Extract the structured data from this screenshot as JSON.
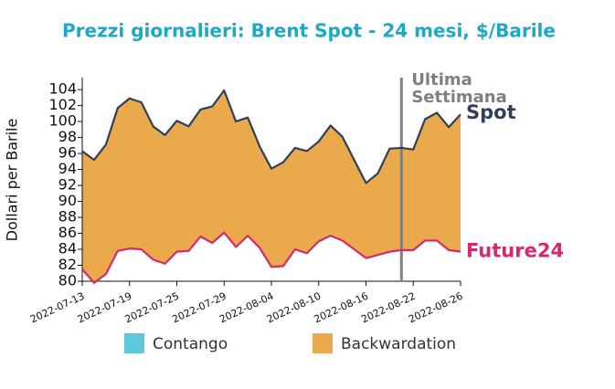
{
  "chart_data": {
    "type": "line",
    "title": "Prezzi giornalieri: Brent Spot - 24 mesi, $/Barile",
    "y_label": "Dollari per Barile",
    "x": [
      "2022-07-13",
      "2022-07-14",
      "2022-07-15",
      "2022-07-18",
      "2022-07-19",
      "2022-07-20",
      "2022-07-21",
      "2022-07-22",
      "2022-07-25",
      "2022-07-26",
      "2022-07-27",
      "2022-07-28",
      "2022-07-29",
      "2022-08-01",
      "2022-08-02",
      "2022-08-03",
      "2022-08-04",
      "2022-08-05",
      "2022-08-08",
      "2022-08-09",
      "2022-08-10",
      "2022-08-11",
      "2022-08-12",
      "2022-08-15",
      "2022-08-16",
      "2022-08-17",
      "2022-08-18",
      "2022-08-19",
      "2022-08-22",
      "2022-08-23",
      "2022-08-24",
      "2022-08-25",
      "2022-08-26"
    ],
    "series": [
      {
        "name": "Spot",
        "color": "#2e3f5c",
        "values": [
          96.3,
          95.2,
          97.1,
          101.7,
          102.9,
          102.4,
          99.4,
          98.3,
          100.1,
          99.4,
          101.5,
          101.9,
          103.9,
          100.0,
          100.5,
          96.9,
          94.1,
          94.9,
          96.7,
          96.3,
          97.5,
          99.5,
          98.1,
          95.2,
          92.3,
          93.5,
          96.6,
          96.7,
          96.5,
          100.3,
          101.1,
          99.3,
          100.9
        ]
      },
      {
        "name": "Future24",
        "color": "#d6286f",
        "values": [
          81.5,
          79.8,
          80.9,
          83.8,
          84.1,
          84.0,
          82.7,
          82.2,
          83.7,
          83.8,
          85.6,
          84.8,
          86.1,
          84.3,
          85.7,
          84.2,
          81.8,
          81.9,
          84.0,
          83.5,
          85.0,
          85.7,
          85.1,
          84.0,
          82.9,
          83.3,
          83.7,
          83.9,
          83.9,
          85.1,
          85.1,
          83.9,
          83.7
        ]
      }
    ],
    "legend": [
      {
        "name": "Contango",
        "color": "#5bc8dc"
      },
      {
        "name": "Backwardation",
        "color": "#eaaa4c"
      }
    ],
    "annotation": {
      "x": "2022-08-19",
      "lines": [
        "Ultima",
        "Settimana"
      ],
      "color": "#7f7f7f"
    },
    "xticks": [
      "2022-07-13",
      "2022-07-19",
      "2022-07-25",
      "2022-07-29",
      "2022-08-04",
      "2022-08-10",
      "2022-08-16",
      "2022-08-22",
      "2022-08-26"
    ],
    "ylim": [
      80,
      105.5
    ],
    "yticks": [
      80,
      82,
      84,
      86,
      88,
      90,
      92,
      94,
      96,
      98,
      100,
      102,
      104
    ]
  }
}
